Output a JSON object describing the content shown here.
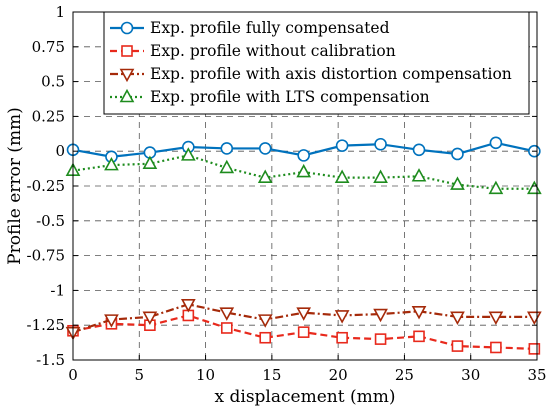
{
  "chart_data": {
    "type": "line",
    "xlabel": "x displacement (mm)",
    "ylabel": "Profile error (mm)",
    "xlim": [
      0,
      35
    ],
    "ylim": [
      -1.5,
      1
    ],
    "xticks": [
      0,
      5,
      10,
      15,
      20,
      25,
      30,
      35
    ],
    "yticks": [
      1,
      0.75,
      0.5,
      0.25,
      0,
      -0.25,
      -0.5,
      -0.75,
      -1,
      -1.25,
      -1.5
    ],
    "ytick_labels": [
      "1",
      "0.75",
      "0.5",
      "0.25",
      "0",
      "-0.25",
      "-0.5",
      "-0.75",
      "-1",
      "-1.25",
      "-1.5"
    ],
    "grid": true,
    "grid_style": "dashed",
    "legend_position": "top",
    "x": [
      0,
      2.9,
      5.8,
      8.7,
      11.6,
      14.5,
      17.4,
      20.3,
      23.2,
      26.1,
      29.0,
      31.9,
      34.8
    ],
    "series": [
      {
        "name": "Exp. profile fully compensated",
        "color": "#0072BD",
        "marker": "circle",
        "line_style": "solid",
        "values": [
          0.01,
          -0.04,
          -0.01,
          0.03,
          0.02,
          0.02,
          -0.03,
          0.04,
          0.05,
          0.01,
          -0.02,
          0.06,
          0.0
        ]
      },
      {
        "name": "Exp. profile without calibration",
        "color": "#E8291C",
        "marker": "square",
        "line_style": "dashed",
        "values": [
          -1.29,
          -1.24,
          -1.25,
          -1.18,
          -1.27,
          -1.34,
          -1.3,
          -1.34,
          -1.35,
          -1.33,
          -1.4,
          -1.41,
          -1.42
        ]
      },
      {
        "name": "Exp. profile with axis distortion compensation",
        "color": "#A52A0A",
        "marker": "triangle-down",
        "line_style": "dashdot",
        "values": [
          -1.3,
          -1.21,
          -1.19,
          -1.1,
          -1.16,
          -1.21,
          -1.16,
          -1.18,
          -1.17,
          -1.15,
          -1.19,
          -1.19,
          -1.19
        ]
      },
      {
        "name": "Exp. profile with LTS compensation",
        "color": "#1E8C1E",
        "marker": "triangle-up",
        "line_style": "dotted",
        "values": [
          -0.14,
          -0.1,
          -0.09,
          -0.03,
          -0.12,
          -0.19,
          -0.15,
          -0.19,
          -0.19,
          -0.18,
          -0.24,
          -0.27,
          -0.27
        ]
      }
    ]
  }
}
